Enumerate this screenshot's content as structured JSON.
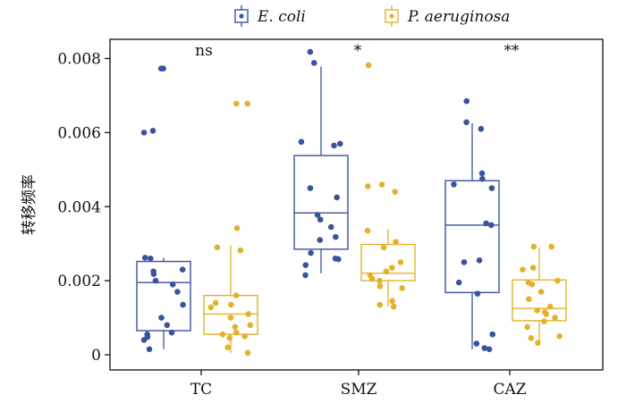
{
  "chart_data": {
    "type": "box",
    "ylabel": "转移频率",
    "xlabel": "",
    "categories": [
      "TC",
      "SMZ",
      "CAZ"
    ],
    "significance": [
      "ns",
      "*",
      "**"
    ],
    "ylim": [
      -0.0002,
      0.0085
    ],
    "yticks": [
      0,
      0.002,
      0.004,
      0.006,
      0.008
    ],
    "ytick_labels": [
      "0",
      "0.002",
      "0.004",
      "0.006",
      "0.008"
    ],
    "grid": false,
    "legend_position": "top",
    "series": [
      {
        "name": "E. coli",
        "color": "#3a539b",
        "boxes": [
          {
            "q1": 0.00065,
            "median": 0.00195,
            "q3": 0.00252,
            "whisker_low": 0.00015,
            "whisker_high": 0.00262
          },
          {
            "q1": 0.00285,
            "median": 0.00383,
            "q3": 0.00538,
            "whisker_low": 0.0022,
            "whisker_high": 0.00778
          },
          {
            "q1": 0.00168,
            "median": 0.0035,
            "q3": 0.0047,
            "whisker_low": 0.00015,
            "whisker_high": 0.00625
          }
        ],
        "points": [
          [
            0.00773,
            0.00773,
            0.00605,
            0.006,
            0.0026,
            0.00262,
            0.0023,
            0.00225,
            0.00218,
            0.002,
            0.0019,
            0.0017,
            0.00135,
            0.001,
            0.0008,
            0.0006,
            0.00055,
            0.00048,
            0.0004,
            0.00015
          ],
          [
            0.00818,
            0.00788,
            0.00575,
            0.0057,
            0.00565,
            0.0045,
            0.00425,
            0.00378,
            0.00365,
            0.00345,
            0.00318,
            0.0031,
            0.00275,
            0.0026,
            0.00258,
            0.00242,
            0.00215
          ],
          [
            0.00685,
            0.00628,
            0.0061,
            0.0049,
            0.00475,
            0.0046,
            0.0045,
            0.00355,
            0.0035,
            0.00255,
            0.0025,
            0.00195,
            0.00165,
            0.00055,
            0.0003,
            0.00018,
            0.00015
          ]
        ]
      },
      {
        "name": "P. aeruginosa",
        "color": "#e2b22c",
        "boxes": [
          {
            "q1": 0.00055,
            "median": 0.0011,
            "q3": 0.0016,
            "whisker_low": 5e-05,
            "whisker_high": 0.00295
          },
          {
            "q1": 0.002,
            "median": 0.0022,
            "q3": 0.00298,
            "whisker_low": 0.0013,
            "whisker_high": 0.0034
          },
          {
            "q1": 0.00092,
            "median": 0.00125,
            "q3": 0.00202,
            "whisker_low": 0.00032,
            "whisker_high": 0.0029
          }
        ],
        "points": [
          [
            0.00678,
            0.00678,
            0.00342,
            0.0029,
            0.00282,
            0.0016,
            0.0014,
            0.00135,
            0.00128,
            0.0011,
            0.001,
            0.0008,
            0.00075,
            0.0006,
            0.00055,
            0.0005,
            0.00045,
            0.0002,
            5e-05
          ],
          [
            0.00782,
            0.0046,
            0.00455,
            0.0044,
            0.00335,
            0.00305,
            0.0029,
            0.0025,
            0.00235,
            0.00225,
            0.00215,
            0.00205,
            0.002,
            0.00185,
            0.0018,
            0.00145,
            0.00135,
            0.0013
          ],
          [
            0.00292,
            0.00292,
            0.00235,
            0.0023,
            0.002,
            0.00195,
            0.0019,
            0.0017,
            0.0015,
            0.0013,
            0.0012,
            0.00115,
            0.0011,
            0.001,
            0.0009,
            0.00075,
            0.0005,
            0.00045,
            0.00032
          ]
        ]
      }
    ]
  }
}
